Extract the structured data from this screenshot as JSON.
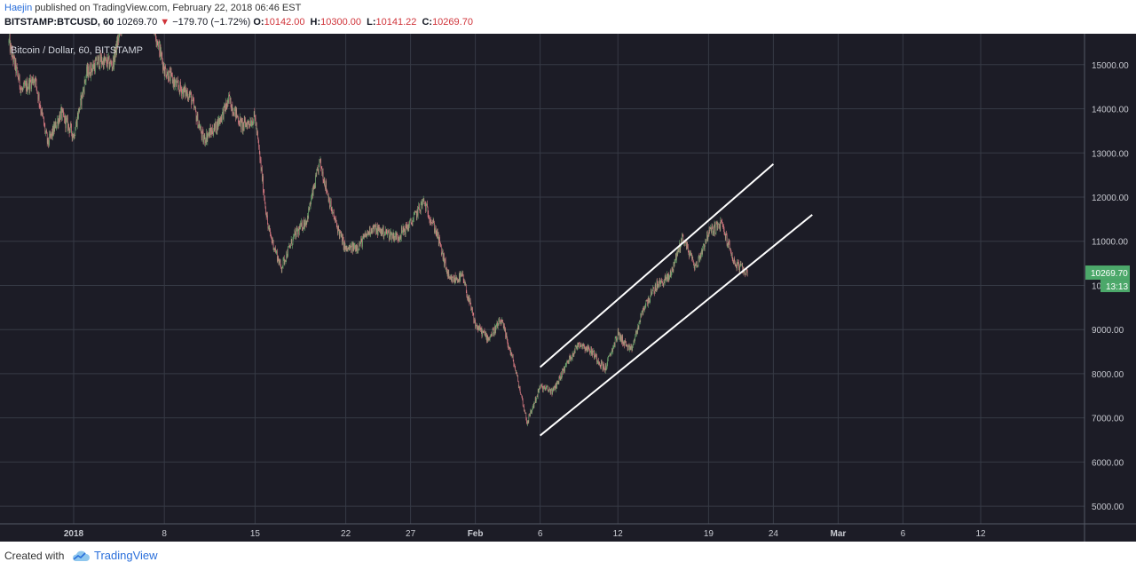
{
  "header": {
    "author": "Haejin",
    "published": "published on TradingView.com, February 22, 2018 06:46 EST",
    "symbol": "BITSTAMP:BTCUSD, 60",
    "last": "10269.70",
    "change": "−179.70 (−1.72%)",
    "o_label": "O:",
    "o": "10142.00",
    "h_label": "H:",
    "h": "10300.00",
    "l_label": "L:",
    "l": "10141.22",
    "c_label": "C:",
    "c": "10269.70"
  },
  "footer": {
    "created_with": "Created with",
    "brand": "TradingView"
  },
  "colors": {
    "background": "#1c1c26",
    "grid": "#363a45",
    "up_candle": "#6ea76e",
    "down_candle": "#d97b83",
    "price_tag": "#4ca86a",
    "channel": "#ffffff"
  },
  "chart_data": {
    "type": "candlestick",
    "title": "Bitcoin / Dollar, 60, BITSTAMP",
    "interval": "60",
    "x_tick_labels": [
      "2018",
      "8",
      "15",
      "22",
      "27",
      "Feb",
      "6",
      "12",
      "19",
      "24",
      "Mar",
      "6",
      "12"
    ],
    "y_tick_labels": [
      "5000.00",
      "6000.00",
      "7000.00",
      "8000.00",
      "9000.00",
      "10000.00",
      "11000.00",
      "12000.00",
      "13000.00",
      "14000.00",
      "15000.00"
    ],
    "ylim": [
      4600,
      15700
    ],
    "grid": true,
    "last_price_label": "10269.70",
    "countdown_label": "13:13",
    "price_path": [
      [
        "2017-12-27",
        15500
      ],
      [
        "2017-12-28",
        14400
      ],
      [
        "2017-12-29",
        14700
      ],
      [
        "2017-12-30",
        13200
      ],
      [
        "2017-12-31",
        13900
      ],
      [
        "2018-01-01",
        13400
      ],
      [
        "2018-01-02",
        14800
      ],
      [
        "2018-01-03",
        15100
      ],
      [
        "2018-01-04",
        15000
      ],
      [
        "2018-01-05",
        16300
      ],
      [
        "2018-01-06",
        17100
      ],
      [
        "2018-01-07",
        16100
      ],
      [
        "2018-01-08",
        14900
      ],
      [
        "2018-01-09",
        14500
      ],
      [
        "2018-01-10",
        14300
      ],
      [
        "2018-01-11",
        13300
      ],
      [
        "2018-01-12",
        13600
      ],
      [
        "2018-01-13",
        14200
      ],
      [
        "2018-01-14",
        13600
      ],
      [
        "2018-01-15",
        13800
      ],
      [
        "2018-01-16",
        11300
      ],
      [
        "2018-01-17",
        10400
      ],
      [
        "2018-01-18",
        11100
      ],
      [
        "2018-01-19",
        11500
      ],
      [
        "2018-01-20",
        12800
      ],
      [
        "2018-01-21",
        11600
      ],
      [
        "2018-01-22",
        10800
      ],
      [
        "2018-01-23",
        10900
      ],
      [
        "2018-01-24",
        11300
      ],
      [
        "2018-01-25",
        11200
      ],
      [
        "2018-01-26",
        11100
      ],
      [
        "2018-01-27",
        11400
      ],
      [
        "2018-01-28",
        11900
      ],
      [
        "2018-01-29",
        11200
      ],
      [
        "2018-01-30",
        10100
      ],
      [
        "2018-01-31",
        10200
      ],
      [
        "2018-02-01",
        9100
      ],
      [
        "2018-02-02",
        8800
      ],
      [
        "2018-02-03",
        9200
      ],
      [
        "2018-02-04",
        8200
      ],
      [
        "2018-02-05",
        6900
      ],
      [
        "2018-02-06",
        7700
      ],
      [
        "2018-02-07",
        7600
      ],
      [
        "2018-02-08",
        8200
      ],
      [
        "2018-02-09",
        8700
      ],
      [
        "2018-02-10",
        8500
      ],
      [
        "2018-02-11",
        8100
      ],
      [
        "2018-02-12",
        8900
      ],
      [
        "2018-02-13",
        8500
      ],
      [
        "2018-02-14",
        9500
      ],
      [
        "2018-02-15",
        10000
      ],
      [
        "2018-02-16",
        10200
      ],
      [
        "2018-02-17",
        11100
      ],
      [
        "2018-02-18",
        10400
      ],
      [
        "2018-02-19",
        11200
      ],
      [
        "2018-02-20",
        11400
      ],
      [
        "2018-02-21",
        10500
      ],
      [
        "2018-02-22",
        10269.7
      ]
    ],
    "annotations": [
      {
        "type": "trendline",
        "from": [
          "2018-02-06",
          8150
        ],
        "to": [
          "2018-02-24",
          12750
        ]
      },
      {
        "type": "trendline",
        "from": [
          "2018-02-06",
          6600
        ],
        "to": [
          "2018-02-27",
          11600
        ]
      }
    ]
  }
}
